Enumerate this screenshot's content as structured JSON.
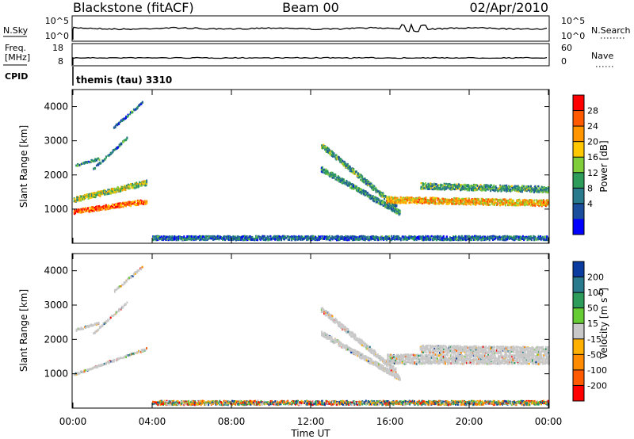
{
  "header": {
    "station": "Blackstone (fitACF)",
    "beam": "Beam 00",
    "date": "02/Apr/2010"
  },
  "top_strips": {
    "nsky_label": "N.Sky",
    "nsearch_label": "N.Search",
    "nsky_ticks": [
      "10^5",
      "10^0"
    ],
    "nsearch_ticks": [
      "10^5",
      "10^0"
    ],
    "freq_label_1": "Freq.",
    "freq_label_2": "[MHz]",
    "freq_ticks": [
      "18",
      "8"
    ],
    "nave_label": "Nave",
    "nave_ticks": [
      "60",
      "0"
    ],
    "cpid_label": "CPID",
    "cpid_text": "themis (tau) 3310"
  },
  "axes": {
    "x_ticks": [
      "00:00",
      "04:00",
      "08:00",
      "12:00",
      "16:00",
      "20:00",
      "00:00"
    ],
    "xlabel": "Time UT",
    "ylabel": "Slant Range [km]",
    "y_ticks": [
      "1000",
      "2000",
      "3000",
      "4000"
    ]
  },
  "colorbars": {
    "power_label": "Power [dB]",
    "power_ticks": [
      "28",
      "24",
      "20",
      "16",
      "12",
      "8",
      "4"
    ],
    "power_colors": [
      "#ff0000",
      "#ff5a00",
      "#ff9600",
      "#ffc800",
      "#7fce3a",
      "#2d9c5a",
      "#2a7a8e",
      "#1c4e9e",
      "#0000ff"
    ],
    "velocity_label": "Velocity [m s",
    "velocity_label_sup": "-1",
    "velocity_label_end": "]",
    "velocity_ticks": [
      "200",
      "100",
      "50",
      "15",
      "-15",
      "-50",
      "-100",
      "-200"
    ],
    "velocity_colors": [
      "#0a3ca0",
      "#2a7a8e",
      "#2d9c5a",
      "#66cc33",
      "#c8c8c8",
      "#ffb000",
      "#ff8c00",
      "#ff5a00",
      "#ff0000"
    ],
    "ground_scatter_color": "#c8c8c8"
  },
  "chart_data": [
    {
      "type": "heatmap",
      "name": "power",
      "x_unit": "hours UT",
      "xlim": [
        0,
        24
      ],
      "ylim": [
        0,
        4500
      ],
      "bands": [
        {
          "t0": 0.0,
          "t1": 3.7,
          "r0": 950,
          "r1": 1250,
          "dr": 70,
          "level": 0.85
        },
        {
          "t0": 0.0,
          "t1": 3.7,
          "r0": 1300,
          "r1": 1800,
          "dr": 90,
          "level": 0.5
        },
        {
          "t0": 0.1,
          "t1": 1.3,
          "r0": 2300,
          "r1": 2500,
          "dr": 0,
          "level": 0.3
        },
        {
          "t0": 1.0,
          "t1": 2.7,
          "r0": 2200,
          "r1": 3100,
          "dr": 0,
          "level": 0.25
        },
        {
          "t0": 2.0,
          "t1": 3.5,
          "r0": 3400,
          "r1": 4150,
          "dr": 0,
          "level": 0.2
        },
        {
          "t0": 12.5,
          "t1": 16.3,
          "r0": 2900,
          "r1": 1100,
          "dr": 90,
          "level": 0.35
        },
        {
          "t0": 12.5,
          "t1": 16.5,
          "r0": 2200,
          "r1": 900,
          "dr": 90,
          "level": 0.3
        },
        {
          "t0": 15.8,
          "t1": 24.0,
          "r0": 1300,
          "r1": 1200,
          "dr": 120,
          "level": 0.7
        },
        {
          "t0": 17.5,
          "t1": 24.0,
          "r0": 1700,
          "r1": 1600,
          "dr": 120,
          "level": 0.35
        },
        {
          "t0": 4.0,
          "t1": 24.0,
          "r0": 180,
          "r1": 180,
          "dr": 60,
          "level": 0.2
        }
      ]
    },
    {
      "type": "heatmap",
      "name": "velocity",
      "x_unit": "hours UT",
      "xlim": [
        0,
        24
      ],
      "ylim": [
        0,
        4500
      ],
      "bands": [
        {
          "t0": 0.0,
          "t1": 3.7,
          "r0": 1000,
          "r1": 1750,
          "dr": 0,
          "gs": 0.8
        },
        {
          "t0": 0.1,
          "t1": 1.3,
          "r0": 2300,
          "r1": 2500,
          "dr": 0,
          "gs": 0.8
        },
        {
          "t0": 1.0,
          "t1": 2.7,
          "r0": 2200,
          "r1": 3100,
          "dr": 0,
          "gs": 0.8
        },
        {
          "t0": 2.0,
          "t1": 3.5,
          "r0": 3400,
          "r1": 4150,
          "dr": 0,
          "gs": 0.8
        },
        {
          "t0": 12.5,
          "t1": 16.3,
          "r0": 2900,
          "r1": 1100,
          "dr": 90,
          "gs": 0.9
        },
        {
          "t0": 12.5,
          "t1": 16.5,
          "r0": 2200,
          "r1": 900,
          "dr": 90,
          "gs": 0.9
        },
        {
          "t0": 15.8,
          "t1": 24.0,
          "r0": 1450,
          "r1": 1450,
          "dr": 220,
          "gs": 0.9
        },
        {
          "t0": 17.5,
          "t1": 24.0,
          "r0": 1750,
          "r1": 1700,
          "dr": 150,
          "gs": 0.9
        },
        {
          "t0": 4.0,
          "t1": 24.0,
          "r0": 180,
          "r1": 180,
          "dr": 60,
          "gs": 0.0
        }
      ]
    }
  ]
}
